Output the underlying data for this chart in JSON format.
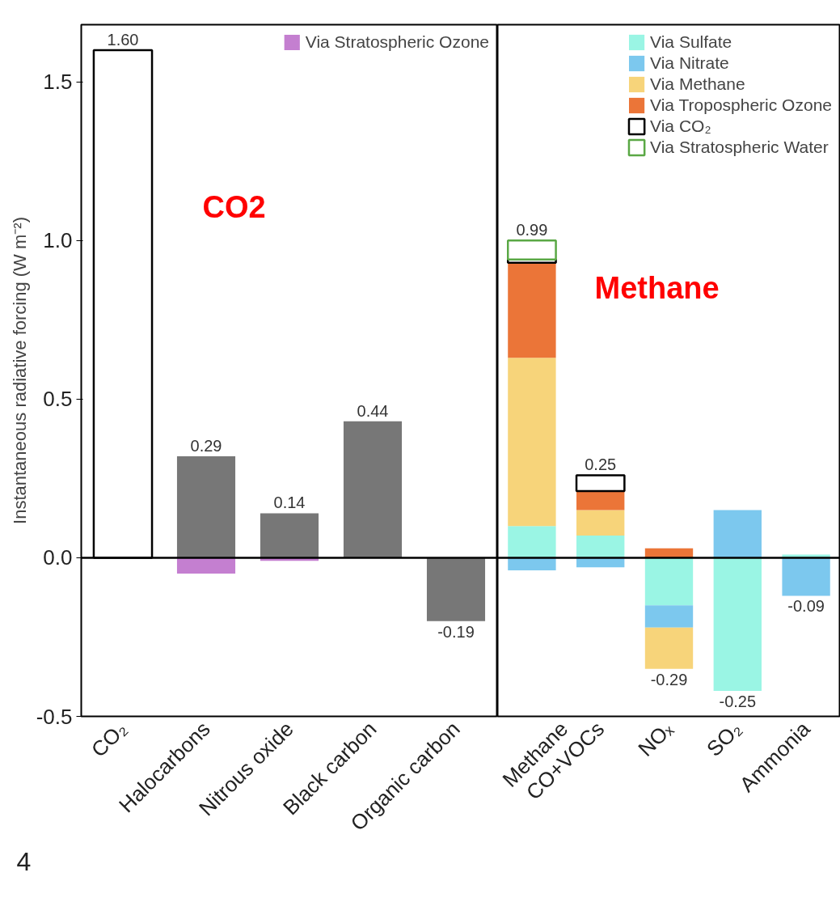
{
  "chart_data": [
    {
      "type": "bar",
      "stacked": true,
      "ylabel": "Instantaneous radiative forcing (W m⁻²)",
      "categories": [
        "CO₂",
        "Halocarbons",
        "Nitrous oxide",
        "Black carbon",
        "Organic carbon"
      ],
      "series": [
        {
          "color": "#777777",
          "values": [
            null,
            0.32,
            0.14,
            0.43,
            -0.2
          ]
        },
        {
          "color": "#000000",
          "line_style": "solid",
          "values": [
            1.6,
            null,
            null,
            null,
            null
          ]
        },
        {
          "name": "Via Stratospheric Ozone",
          "color": "#c47fd0",
          "values": [
            null,
            -0.05,
            -0.01,
            null,
            null
          ]
        }
      ],
      "totals": [
        "1.60",
        "0.29",
        "0.14",
        "0.44",
        "-0.19"
      ],
      "ylim": [
        -0.5,
        1.68
      ],
      "yticks": [
        {
          "value": -0.5,
          "label": "-0.5"
        },
        {
          "value": 0,
          "label": "0.0"
        },
        {
          "value": 0.5,
          "label": "0.5"
        },
        {
          "value": 1,
          "label": "1.0"
        },
        {
          "value": 1.5,
          "label": "1.5"
        }
      ],
      "ref_lines": [
        {
          "axis": "y",
          "value": 0,
          "color": "#000000"
        }
      ],
      "grid": false,
      "legend": "top right",
      "annotations": [
        "CO2",
        "4"
      ]
    },
    {
      "type": "bar",
      "stacked": true,
      "categories": [
        "Methane",
        "CO+VOCs",
        "NOₓ",
        "SO₂",
        "Ammonia"
      ],
      "series": [
        {
          "name": "Via Sulfate",
          "color": "#9af5e4",
          "values": [
            0.1,
            0.07,
            -0.15,
            -0.42,
            0.01
          ]
        },
        {
          "name": "Via Nitrate",
          "color": "#7cc8ee",
          "values": [
            -0.04,
            -0.03,
            -0.07,
            0.15,
            -0.12
          ]
        },
        {
          "name": "Via Methane",
          "color": "#f7d47a",
          "values": [
            0.53,
            0.08,
            -0.13,
            null,
            null
          ]
        },
        {
          "name": "Via Tropospheric Ozone",
          "color": "#eb7538",
          "values": [
            0.3,
            0.06,
            0.03,
            null,
            null
          ]
        },
        {
          "name": "Via CO₂",
          "color": "#000000",
          "line_style": "solid",
          "values": [
            0.01,
            0.05,
            null,
            null,
            null
          ]
        },
        {
          "name": "Via Stratospheric Water",
          "color": "#5aa845",
          "line_style": "solid",
          "values": [
            0.06,
            null,
            null,
            null,
            null
          ]
        }
      ],
      "totals": [
        "0.99",
        "0.25",
        "-0.29",
        "-0.25",
        "-0.09"
      ],
      "ylim": [
        -0.5,
        1.68
      ],
      "ref_lines": [
        {
          "axis": "y",
          "value": 0,
          "color": "#000000"
        }
      ],
      "grid": false,
      "legend": "top right",
      "tick_labels": "x",
      "annotations": [
        "Methane"
      ]
    }
  ]
}
